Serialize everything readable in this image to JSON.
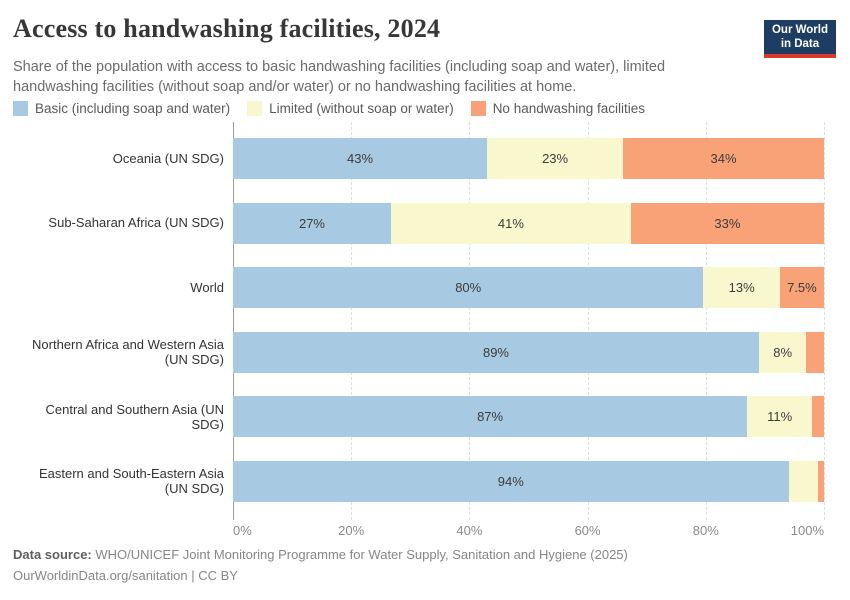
{
  "header": {
    "title": "Access to handwashing facilities, 2024",
    "subtitle": "Share of the population with access to basic handwashing facilities (including soap and water), limited\nhandwashing facilities (without soap and/or water) or no handwashing facilities at home."
  },
  "logo": {
    "line1": "Our World",
    "line2": "in Data",
    "bg_color": "#1d3d63",
    "stripe_color": "#d93a2e"
  },
  "chart_data": {
    "type": "bar",
    "variant": "stacked-horizontal",
    "xlim": [
      0,
      100
    ],
    "grid": true,
    "x_ticks": {
      "values": [
        0,
        20,
        40,
        60,
        80,
        100
      ],
      "labels": [
        "0%",
        "20%",
        "40%",
        "60%",
        "80%",
        "100%"
      ]
    },
    "categories": [
      "Oceania (UN SDG)",
      "Sub-Saharan Africa (UN SDG)",
      "World",
      "Northern Africa and Western Asia\n(UN SDG)",
      "Central and Southern Asia (UN\nSDG)",
      "Eastern and South-Eastern Asia\n(UN SDG)"
    ],
    "series": [
      {
        "name": "Basic (including soap and water)",
        "color": "#a7c9e1",
        "values": [
          43,
          27,
          80,
          89,
          87,
          94
        ],
        "labels": [
          "43%",
          "27%",
          "80%",
          "89%",
          "87%",
          "94%"
        ]
      },
      {
        "name": "Limited (without soap or water)",
        "color": "#f9f7cd",
        "values": [
          23,
          41,
          13,
          8,
          11,
          5
        ],
        "labels": [
          "23%",
          "41%",
          "13%",
          "8%",
          "11%",
          ""
        ]
      },
      {
        "name": "No handwashing facilities",
        "color": "#f9a278",
        "values": [
          34,
          33,
          7.5,
          3,
          2,
          1
        ],
        "labels": [
          "34%",
          "33%",
          "7.5%",
          "",
          "",
          ""
        ]
      }
    ]
  },
  "footer": {
    "datasource_label": "Data source:",
    "datasource_text": " WHO/UNICEF Joint Monitoring Programme for Water Supply, Sanitation and Hygiene (2025)",
    "link_text": "OurWorldinData.org/sanitation",
    "separator": " | ",
    "license_text": "CC BY"
  }
}
